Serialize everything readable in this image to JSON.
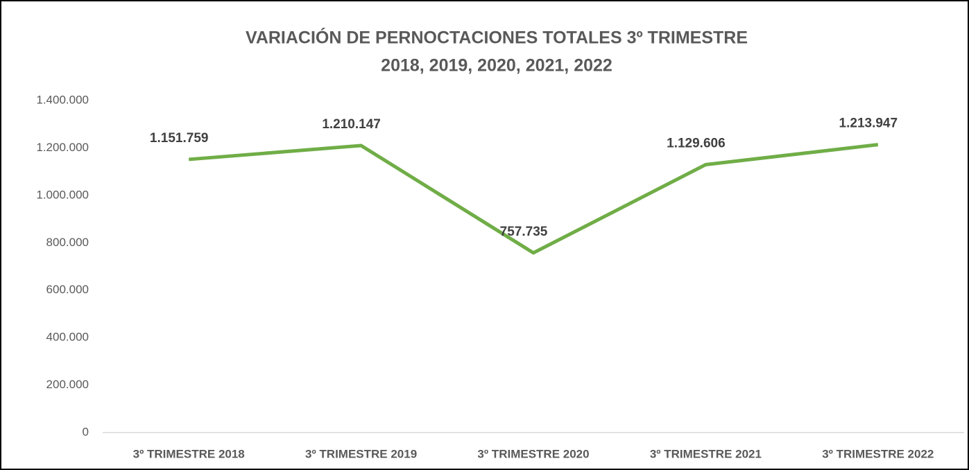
{
  "chart_data": {
    "type": "line",
    "title": [
      "VARIACIÓN DE PERNOCTACIONES TOTALES 3º TRIMESTRE",
      "2018, 2019, 2020, 2021, 2022"
    ],
    "categories": [
      "3º TRIMESTRE 2018",
      "3º TRIMESTRE 2019",
      "3º TRIMESTRE 2020",
      "3º TRIMESTRE 2021",
      "3º TRIMESTRE 2022"
    ],
    "values": [
      1151759,
      1210147,
      757735,
      1129606,
      1213947
    ],
    "value_labels": [
      "1.151.759",
      "1.210.147",
      "757.735",
      "1.129.606",
      "1.213.947"
    ],
    "color": "#70ad47",
    "ylim": [
      0,
      1400000
    ],
    "yticks": [
      0,
      {
        "value": 200000,
        "label": "200.000"
      },
      {
        "value": 400000,
        "label": "400.000"
      },
      {
        "value": 600000,
        "label": "600.000"
      },
      {
        "value": 800000,
        "label": "800.000"
      },
      {
        "value": 1000000,
        "label": "1.000.000"
      },
      {
        "value": 1200000,
        "label": "1.200.000"
      },
      {
        "value": 1400000,
        "label": "1.400.000"
      }
    ],
    "grid": false
  }
}
